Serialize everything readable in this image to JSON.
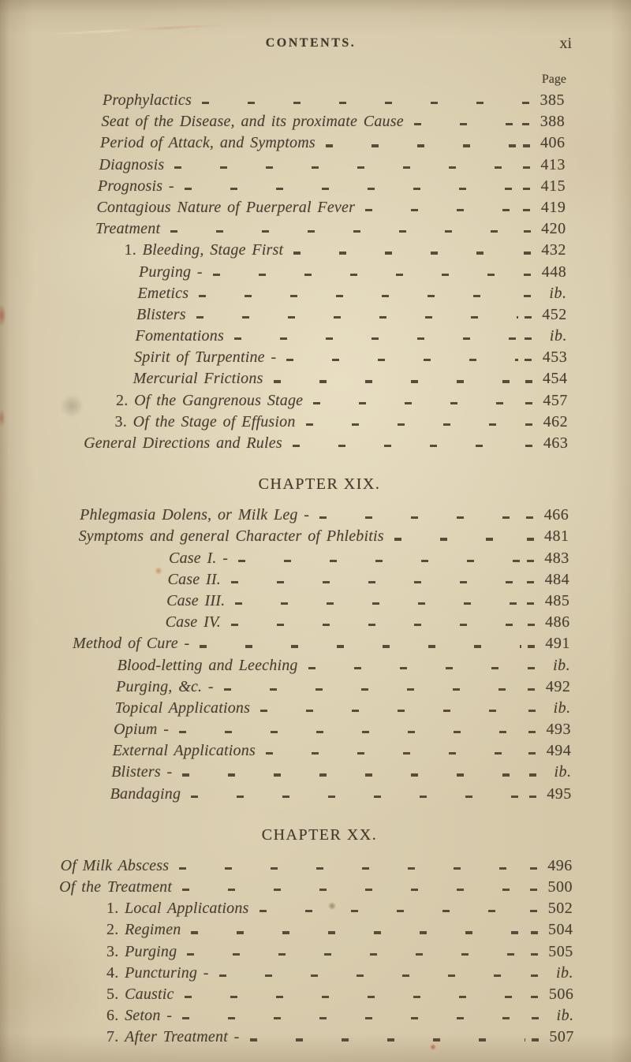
{
  "header": {
    "title": "CONTENTS.",
    "folio": "xi",
    "page_column_label": "Page"
  },
  "sections": [
    {
      "heading": "",
      "entries": [
        {
          "label": "Prophylactics",
          "page": "385",
          "indent": 0
        },
        {
          "label": "Seat of the Disease, and its proximate Cause",
          "page": "388",
          "indent": 0
        },
        {
          "label": "Period of Attack, and Symptoms",
          "page": "406",
          "indent": 0
        },
        {
          "label": "Diagnosis",
          "page": "413",
          "indent": 0
        },
        {
          "label": "Prognosis -",
          "page": "415",
          "indent": 0
        },
        {
          "label": "Contagious Nature of Puerperal Fever",
          "page": "419",
          "indent": 0
        },
        {
          "label": "Treatment",
          "page": "420",
          "indent": 0
        },
        {
          "label": "1. Bleeding, Stage First",
          "page": "432",
          "indent": 1
        },
        {
          "label": "Purging -",
          "page": "448",
          "indent": 2
        },
        {
          "label": "Emetics",
          "page": "ib.",
          "indent": 2
        },
        {
          "label": "Blisters",
          "page": "452",
          "indent": 2
        },
        {
          "label": "Fomentations",
          "page": "ib.",
          "indent": 2
        },
        {
          "label": "Spirit of Turpentine -",
          "page": "453",
          "indent": 2
        },
        {
          "label": "Mercurial Frictions",
          "page": "454",
          "indent": 2
        },
        {
          "label": "2. Of the Gangrenous Stage",
          "page": "457",
          "indent": 1
        },
        {
          "label": "3. Of the Stage of Effusion",
          "page": "462",
          "indent": 1
        },
        {
          "label": "General Directions and Rules",
          "page": "463",
          "indent": 0
        }
      ]
    },
    {
      "heading": "CHAPTER XIX.",
      "entries": [
        {
          "label": "Phlegmasia Dolens, or Milk Leg -",
          "page": "466",
          "indent": 0
        },
        {
          "label": "Symptoms and general Character of Phlebitis",
          "page": "481",
          "indent": 0
        },
        {
          "label": "Case I. -",
          "page": "483",
          "indent": 3
        },
        {
          "label": "Case II.",
          "page": "484",
          "indent": 3
        },
        {
          "label": "Case III.",
          "page": "485",
          "indent": 3
        },
        {
          "label": "Case IV.",
          "page": "486",
          "indent": 3
        },
        {
          "label": "Method of Cure -",
          "page": "491",
          "indent": 0
        },
        {
          "label": "Blood-letting and Leeching",
          "page": "ib.",
          "indent": 2
        },
        {
          "label": "Purging, &c. -",
          "page": "492",
          "indent": 2
        },
        {
          "label": "Topical Applications",
          "page": "ib.",
          "indent": 2
        },
        {
          "label": "Opium -",
          "page": "493",
          "indent": 2
        },
        {
          "label": "External Applications",
          "page": "494",
          "indent": 2
        },
        {
          "label": "Blisters -",
          "page": "ib.",
          "indent": 2
        },
        {
          "label": "Bandaging",
          "page": "495",
          "indent": 2
        }
      ]
    },
    {
      "heading": "CHAPTER XX.",
      "entries": [
        {
          "label": "Of Milk Abscess",
          "page": "496",
          "indent": 0
        },
        {
          "label": "Of the Treatment",
          "page": "500",
          "indent": 0
        },
        {
          "label": "1. Local Applications",
          "page": "502",
          "indent": 4
        },
        {
          "label": "2. Regimen",
          "page": "504",
          "indent": 4
        },
        {
          "label": "3. Purging",
          "page": "505",
          "indent": 4
        },
        {
          "label": "4. Puncturing -",
          "page": "ib.",
          "indent": 4
        },
        {
          "label": "5. Caustic",
          "page": "506",
          "indent": 4
        },
        {
          "label": "6. Seton -",
          "page": "ib.",
          "indent": 4
        },
        {
          "label": "7. After Treatment -",
          "page": "507",
          "indent": 4
        }
      ]
    }
  ],
  "colors": {
    "paper": "#d5c8a9",
    "ink": "#4a4031",
    "leader": "#5a4c38"
  }
}
